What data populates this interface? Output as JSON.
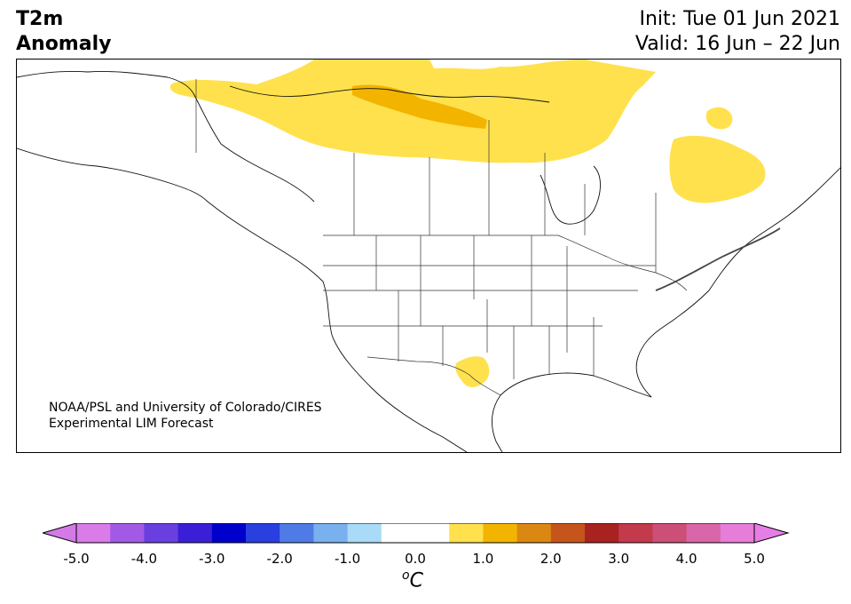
{
  "header": {
    "title_line1": "T2m",
    "title_line2": "Anomaly",
    "init_label": "Init: Tue 01 Jun 2021",
    "valid_label": "Valid: 16 Jun – 22 Jun"
  },
  "credit": {
    "line1": "NOAA/PSL and University of Colorado/CIRES",
    "line2": "Experimental LIM Forecast"
  },
  "colorbar": {
    "tick_labels": [
      "-5.0",
      "-4.0",
      "-3.0",
      "-2.0",
      "-1.0",
      "0.0",
      "1.0",
      "2.0",
      "3.0",
      "4.0",
      "5.0"
    ],
    "unit_base": "C",
    "unit_super": "o",
    "colors": [
      "#d97ce8",
      "#a25ae6",
      "#6a3fe0",
      "#3b1fd6",
      "#0000cc",
      "#2a3fe0",
      "#4f7be6",
      "#78b1ee",
      "#a9dbf9",
      "#ffffff",
      "#ffffff",
      "#ffe14d",
      "#f3b400",
      "#db8812",
      "#c6551c",
      "#a8231f",
      "#c23a4c",
      "#cc4f78",
      "#d966a8",
      "#e67dd8"
    ],
    "under_color": "#d47ae6",
    "over_color": "#e67ee6"
  },
  "map": {
    "anomaly_regions": [
      {
        "name": "northern-canada-warm",
        "level": "0.5-1.0",
        "color": "#ffe14d"
      },
      {
        "name": "nunavut-warm-core",
        "level": "1.0-1.5",
        "color": "#f3b400"
      },
      {
        "name": "quebec-warm",
        "level": "0.5-1.0",
        "color": "#ffe14d"
      },
      {
        "name": "baffin-warm",
        "level": "0.5-1.0",
        "color": "#ffe14d"
      },
      {
        "name": "texas-warm",
        "level": "0.5-1.0",
        "color": "#ffe14d"
      }
    ]
  }
}
